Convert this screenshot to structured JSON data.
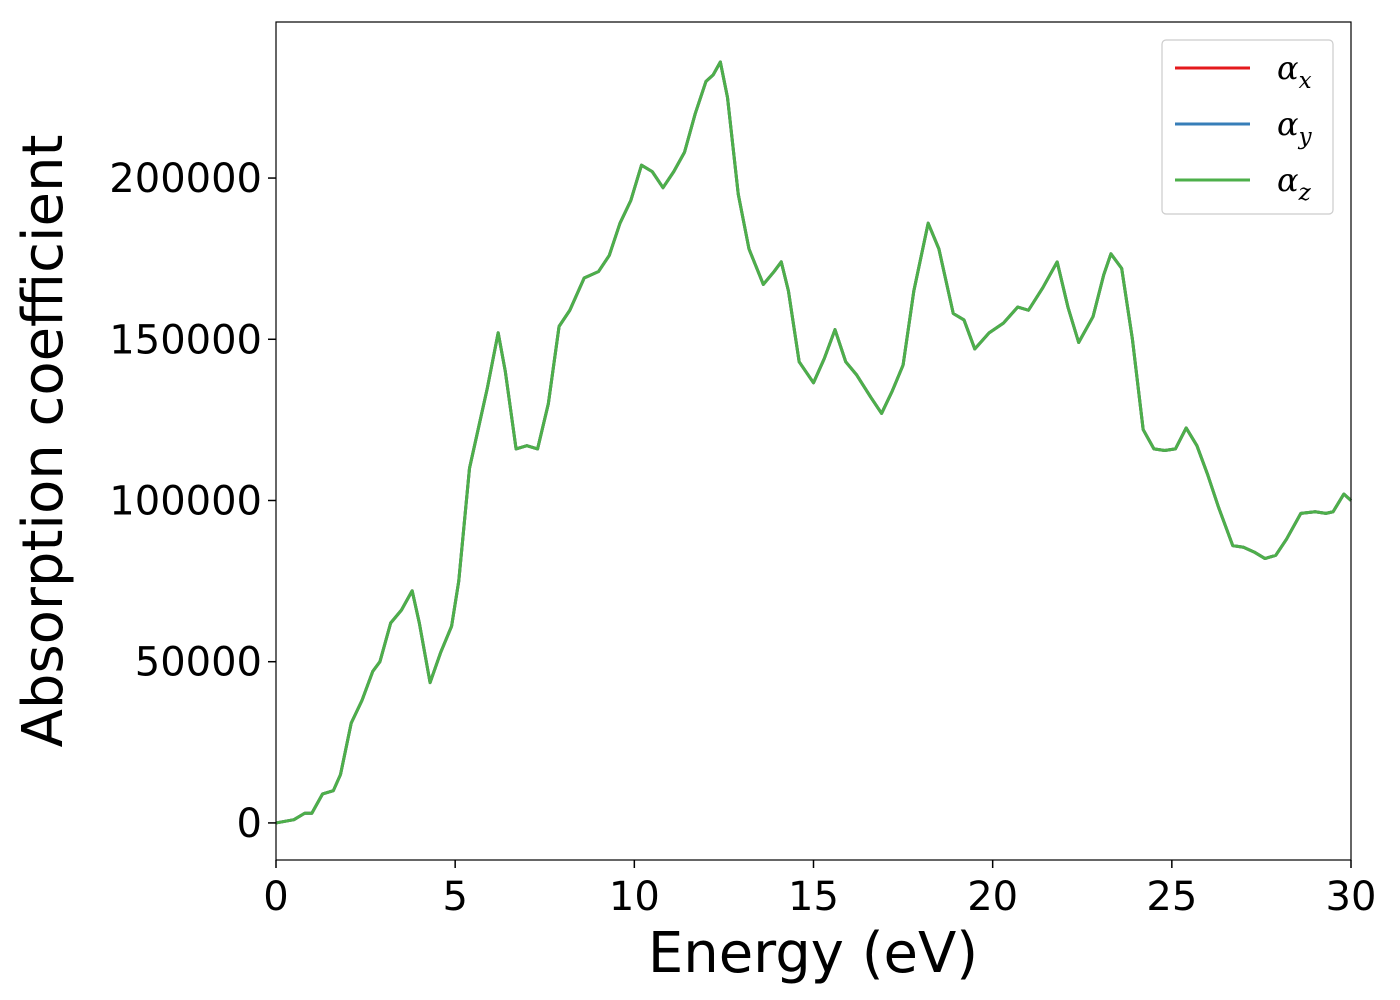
{
  "chart_data": {
    "type": "line",
    "xlabel": "Energy (eV)",
    "ylabel": "Absorption coefficient",
    "x": [
      0,
      0.5,
      0.8,
      1.0,
      1.3,
      1.6,
      1.8,
      2.1,
      2.4,
      2.7,
      2.9,
      3.2,
      3.5,
      3.8,
      4.0,
      4.3,
      4.6,
      4.9,
      5.1,
      5.4,
      5.7,
      5.9,
      6.2,
      6.4,
      6.7,
      7.0,
      7.3,
      7.6,
      7.9,
      8.2,
      8.6,
      9.0,
      9.3,
      9.6,
      9.9,
      10.2,
      10.5,
      10.8,
      11.1,
      11.4,
      11.7,
      12.0,
      12.2,
      12.4,
      12.6,
      12.9,
      13.2,
      13.6,
      13.9,
      14.1,
      14.3,
      14.6,
      15.0,
      15.3,
      15.6,
      15.9,
      16.2,
      16.6,
      16.9,
      17.2,
      17.5,
      17.8,
      18.2,
      18.5,
      18.9,
      19.2,
      19.5,
      19.9,
      20.3,
      20.7,
      21.0,
      21.4,
      21.8,
      22.1,
      22.4,
      22.8,
      23.1,
      23.3,
      23.6,
      23.9,
      24.2,
      24.5,
      24.8,
      25.1,
      25.4,
      25.7,
      26.0,
      26.3,
      26.7,
      27.0,
      27.3,
      27.6,
      27.9,
      28.2,
      28.6,
      29.0,
      29.3,
      29.5,
      29.8,
      30.0
    ],
    "series": [
      {
        "name": "αx",
        "color": "#e41a1c",
        "values": [
          0,
          1000,
          3000,
          3000,
          9000,
          10000,
          15000,
          31000,
          38000,
          47000,
          50000,
          62000,
          66000,
          72000,
          62000,
          43500,
          53000,
          61000,
          75000,
          110000,
          125000,
          135000,
          152000,
          140000,
          116000,
          117000,
          116000,
          130000,
          154000,
          159000,
          169000,
          171000,
          176000,
          186000,
          193000,
          204000,
          202000,
          197000,
          202000,
          208000,
          220000,
          230000,
          232000,
          236000,
          225000,
          195000,
          178000,
          167000,
          171000,
          174000,
          165000,
          143000,
          136500,
          144000,
          153000,
          143000,
          139000,
          132000,
          127000,
          134000,
          142000,
          165000,
          186000,
          178000,
          158000,
          156000,
          147000,
          152000,
          155000,
          160000,
          159000,
          166000,
          174000,
          160000,
          149000,
          157000,
          170000,
          176500,
          172000,
          150000,
          122000,
          116000,
          115500,
          116000,
          122500,
          117000,
          108000,
          98000,
          86000,
          85500,
          84000,
          82000,
          83000,
          88000,
          96000,
          96500,
          96000,
          96500,
          102000,
          100000
        ]
      },
      {
        "name": "αy",
        "color": "#377eb8",
        "values": [
          0,
          1000,
          3000,
          3000,
          9000,
          10000,
          15000,
          31000,
          38000,
          47000,
          50000,
          62000,
          66000,
          72000,
          62000,
          43500,
          53000,
          61000,
          75000,
          110000,
          125000,
          135000,
          152000,
          140000,
          116000,
          117000,
          116000,
          130000,
          154000,
          159000,
          169000,
          171000,
          176000,
          186000,
          193000,
          204000,
          202000,
          197000,
          202000,
          208000,
          220000,
          230000,
          232000,
          236000,
          225000,
          195000,
          178000,
          167000,
          171000,
          174000,
          165000,
          143000,
          136500,
          144000,
          153000,
          143000,
          139000,
          132000,
          127000,
          134000,
          142000,
          165000,
          186000,
          178000,
          158000,
          156000,
          147000,
          152000,
          155000,
          160000,
          159000,
          166000,
          174000,
          160000,
          149000,
          157000,
          170000,
          176500,
          172000,
          150000,
          122000,
          116000,
          115500,
          116000,
          122500,
          117000,
          108000,
          98000,
          86000,
          85500,
          84000,
          82000,
          83000,
          88000,
          96000,
          96500,
          96000,
          96500,
          102000,
          100000
        ]
      },
      {
        "name": "αz",
        "color": "#4daf4a",
        "values": [
          0,
          1000,
          3000,
          3000,
          9000,
          10000,
          15000,
          31000,
          38000,
          47000,
          50000,
          62000,
          66000,
          72000,
          62000,
          43500,
          53000,
          61000,
          75000,
          110000,
          125000,
          135000,
          152000,
          140000,
          116000,
          117000,
          116000,
          130000,
          154000,
          159000,
          169000,
          171000,
          176000,
          186000,
          193000,
          204000,
          202000,
          197000,
          202000,
          208000,
          220000,
          230000,
          232000,
          236000,
          225000,
          195000,
          178000,
          167000,
          171000,
          174000,
          165000,
          143000,
          136500,
          144000,
          153000,
          143000,
          139000,
          132000,
          127000,
          134000,
          142000,
          165000,
          186000,
          178000,
          158000,
          156000,
          147000,
          152000,
          155000,
          160000,
          159000,
          166000,
          174000,
          160000,
          149000,
          157000,
          170000,
          176500,
          172000,
          150000,
          122000,
          116000,
          115500,
          116000,
          122500,
          117000,
          108000,
          98000,
          86000,
          85500,
          84000,
          82000,
          83000,
          88000,
          96000,
          96500,
          96000,
          96500,
          102000,
          100000
        ]
      }
    ],
    "xlim": [
      0,
      30
    ],
    "ylim": [
      -11500,
      248400
    ],
    "xticks": [
      0,
      5,
      10,
      15,
      20,
      25,
      30
    ],
    "yticks": [
      0,
      50000,
      100000,
      150000,
      200000
    ],
    "legend": "upper right"
  }
}
